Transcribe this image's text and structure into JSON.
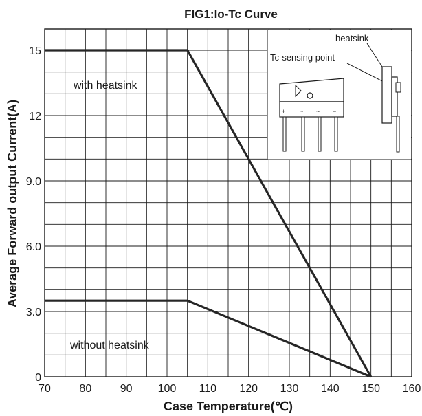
{
  "chart_data": {
    "type": "line",
    "title": "FIG1:Io-Tc Curve",
    "xlabel": "Case Temperature(℃)",
    "ylabel": "Average Forward output Current(A)",
    "xlim": [
      70,
      160
    ],
    "ylim": [
      0,
      16
    ],
    "x_ticks": [
      70,
      80,
      90,
      100,
      110,
      120,
      130,
      140,
      150,
      160
    ],
    "x_tick_labels": [
      "70",
      "80",
      "90",
      "100",
      "110",
      "120",
      "130",
      "140",
      "150",
      "160"
    ],
    "y_ticks": [
      0,
      3,
      6,
      9,
      12,
      15
    ],
    "y_tick_labels": [
      "0",
      "3.0",
      "6.0",
      "9.0",
      "12",
      "15"
    ],
    "grid": true,
    "series": [
      {
        "name": "with heatsink",
        "x": [
          70,
          105,
          150
        ],
        "y": [
          15,
          15,
          0
        ]
      },
      {
        "name": "without heatsink",
        "x": [
          70,
          105,
          150
        ],
        "y": [
          3.5,
          3.5,
          0
        ]
      }
    ],
    "annotations": {
      "with_heatsink": "with heatsink",
      "without_heatsink": "without heatsink"
    },
    "inset": {
      "heatsink_label": "heatsink",
      "sensing_label": "Tc-sensing point",
      "pin_marks": [
        "+",
        "~",
        "~",
        "−"
      ]
    }
  }
}
